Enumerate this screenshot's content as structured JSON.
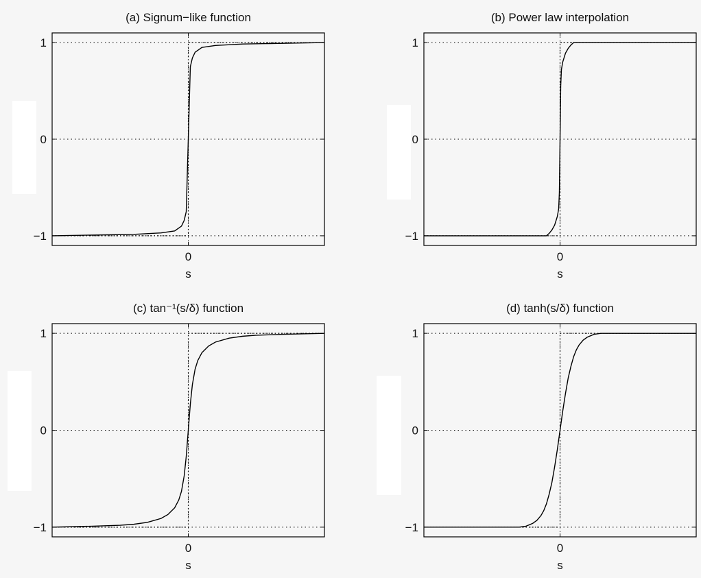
{
  "chart_data": [
    {
      "type": "line",
      "title": "(a) Signum−like function",
      "xlabel": "s",
      "xticks": [
        "0"
      ],
      "yticks": [
        "−1",
        "0",
        "1"
      ],
      "xlim": [
        -1,
        1
      ],
      "ylim": [
        -1.1,
        1.1
      ],
      "grid": true,
      "series": [
        {
          "x": [
            -1,
            -0.8,
            -0.6,
            -0.4,
            -0.2,
            -0.1,
            -0.05,
            -0.03,
            -0.015,
            0,
            0.015,
            0.03,
            0.05,
            0.1,
            0.2,
            0.4,
            0.6,
            0.8,
            1
          ],
          "values": [
            -1,
            -0.995,
            -0.99,
            -0.985,
            -0.97,
            -0.95,
            -0.9,
            -0.84,
            -0.75,
            0,
            0.75,
            0.84,
            0.9,
            0.95,
            0.97,
            0.985,
            0.99,
            0.995,
            1
          ]
        },
        {
          "x": [
            -1,
            0,
            0,
            1
          ],
          "values": [
            -1,
            -1,
            1,
            1
          ]
        }
      ]
    },
    {
      "type": "line",
      "title": "(b) Power law interpolation",
      "xlabel": "s",
      "xticks": [
        "0"
      ],
      "yticks": [
        "−1",
        "0",
        "1"
      ],
      "xlim": [
        -1,
        1
      ],
      "ylim": [
        -1.1,
        1.1
      ],
      "grid": true,
      "series": [
        {
          "x": [
            -1,
            -0.1,
            -0.08,
            -0.06,
            -0.04,
            -0.02,
            -0.01,
            -0.005,
            0,
            0.005,
            0.01,
            0.02,
            0.04,
            0.06,
            0.08,
            0.1,
            1
          ],
          "values": [
            -1,
            -1,
            -0.975,
            -0.94,
            -0.89,
            -0.8,
            -0.72,
            -0.55,
            0,
            0.55,
            0.72,
            0.8,
            0.89,
            0.94,
            0.975,
            1,
            1
          ]
        },
        {
          "x": [
            -1,
            0,
            0,
            1
          ],
          "values": [
            -1,
            -1,
            1,
            1
          ]
        }
      ]
    },
    {
      "type": "line",
      "title": "(c) tan⁻¹(s/δ) function",
      "xlabel": "s",
      "xticks": [
        "0"
      ],
      "yticks": [
        "−1",
        "0",
        "1"
      ],
      "xlim": [
        -1,
        1
      ],
      "ylim": [
        -1.1,
        1.1
      ],
      "grid": true,
      "series": [
        {
          "x": [
            -1,
            -0.7,
            -0.5,
            -0.4,
            -0.3,
            -0.2,
            -0.15,
            -0.1,
            -0.07,
            -0.05,
            -0.03,
            -0.015,
            0,
            0.015,
            0.03,
            0.05,
            0.07,
            0.1,
            0.15,
            0.2,
            0.3,
            0.4,
            0.5,
            0.7,
            1
          ],
          "values": [
            -1,
            -0.99,
            -0.98,
            -0.97,
            -0.95,
            -0.91,
            -0.87,
            -0.8,
            -0.72,
            -0.63,
            -0.47,
            -0.27,
            0,
            0.27,
            0.47,
            0.63,
            0.72,
            0.8,
            0.87,
            0.91,
            0.95,
            0.97,
            0.98,
            0.99,
            1
          ]
        },
        {
          "x": [
            -1,
            0,
            0,
            1
          ],
          "values": [
            -1,
            -1,
            1,
            1
          ]
        }
      ]
    },
    {
      "type": "line",
      "title": "(d) tanh(s/δ) function",
      "xlabel": "s",
      "xticks": [
        "0"
      ],
      "yticks": [
        "−1",
        "0",
        "1"
      ],
      "xlim": [
        -1,
        1
      ],
      "ylim": [
        -1.1,
        1.1
      ],
      "grid": true,
      "series": [
        {
          "x": [
            -1,
            -0.3,
            -0.25,
            -0.2,
            -0.17,
            -0.14,
            -0.12,
            -0.1,
            -0.08,
            -0.06,
            -0.04,
            -0.02,
            0,
            0.02,
            0.04,
            0.06,
            0.08,
            0.1,
            0.12,
            0.14,
            0.17,
            0.2,
            0.25,
            0.3,
            1
          ],
          "values": [
            -1,
            -1,
            -0.99,
            -0.96,
            -0.93,
            -0.88,
            -0.83,
            -0.76,
            -0.66,
            -0.54,
            -0.38,
            -0.2,
            0,
            0.2,
            0.38,
            0.54,
            0.66,
            0.76,
            0.83,
            0.88,
            0.93,
            0.96,
            0.99,
            1,
            1
          ]
        },
        {
          "x": [
            -1,
            0,
            0,
            1
          ],
          "values": [
            -1,
            -1,
            1,
            1
          ]
        }
      ]
    }
  ]
}
